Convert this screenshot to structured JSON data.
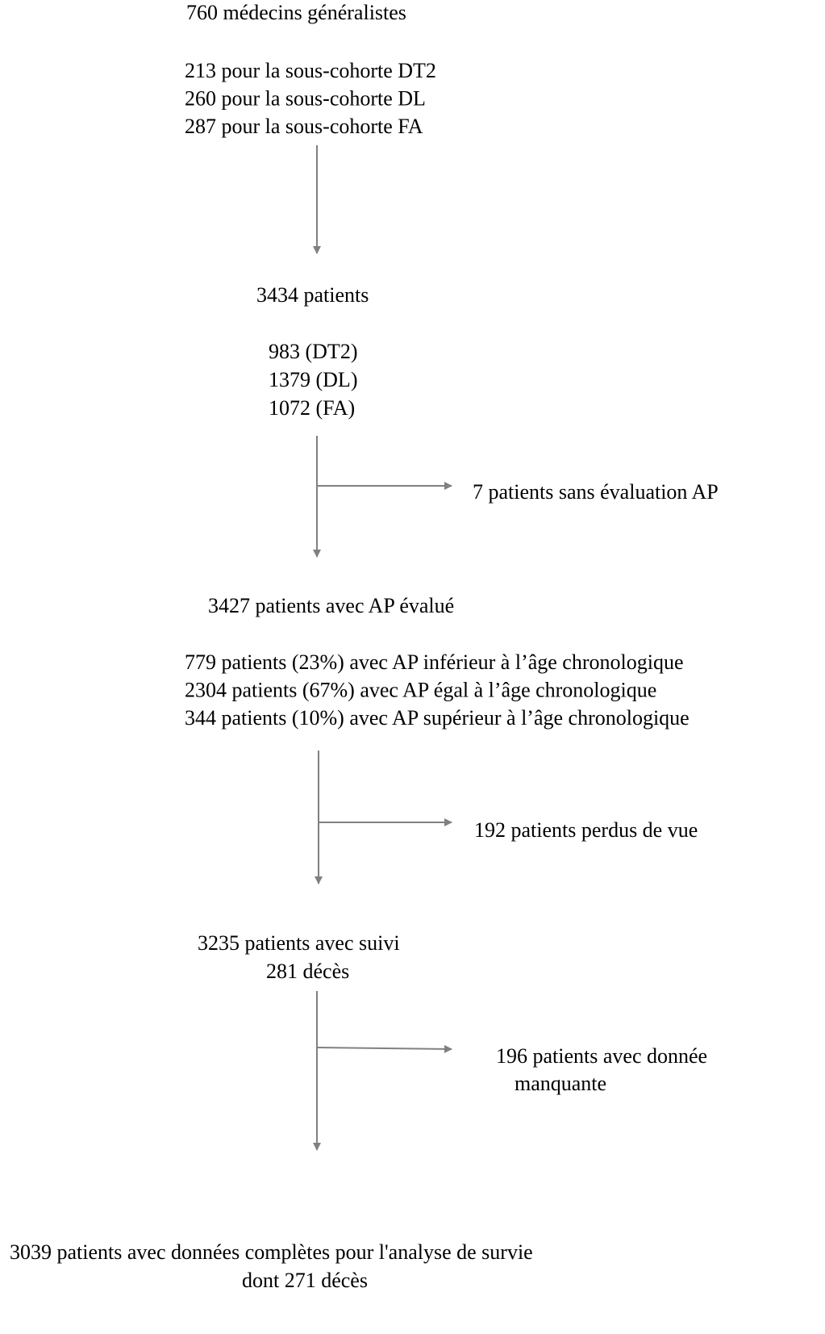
{
  "nodes": [
    {
      "lines": [
        "760 médecins généralistes"
      ]
    },
    {
      "lines": [
        "213 pour la sous-cohorte DT2",
        "260 pour la sous-cohorte DL",
        "287 pour la sous-cohorte FA"
      ]
    },
    {
      "lines": [
        "3434 patients"
      ]
    },
    {
      "lines": [
        "983 (DT2)",
        "1379 (DL)",
        "1072 (FA)"
      ]
    },
    {
      "lines": [
        "7 patients sans évaluation AP"
      ]
    },
    {
      "lines": [
        "3427 patients avec AP évalué"
      ]
    },
    {
      "lines": [
        "779 patients (23%) avec AP inférieur à l’âge chronologique",
        "2304 patients (67%) avec AP égal à l’âge chronologique",
        "344 patients (10%) avec AP supérieur à l’âge chronologique"
      ]
    },
    {
      "lines": [
        "192 patients perdus de vue"
      ]
    },
    {
      "lines": [
        "3235 patients avec suivi",
        "281 décès"
      ]
    },
    {
      "lines": [
        "196 patients avec donnée",
        "manquante"
      ]
    },
    {
      "lines": [
        "3039 patients avec données complètes pour l'analyse de survie",
        "dont 271 décès"
      ]
    }
  ]
}
